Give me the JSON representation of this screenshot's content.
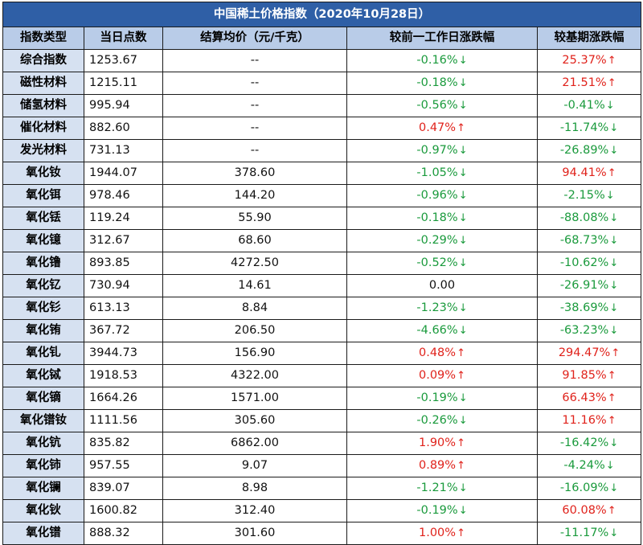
{
  "title": "中国稀土价格指数（2020年10月28日）",
  "headers": [
    "指数类型",
    "当日点数",
    "结算均价（元/千克）",
    "较前一工作日涨跌幅",
    "较基期涨跌幅"
  ],
  "colors": {
    "up": "#e0221b",
    "down": "#1a9a3c",
    "title_bg": "#2f5fa6",
    "header_bg": "#b9cce8",
    "name_bg": "#d6e1f1"
  },
  "icons": {
    "up": "arrow-up-icon",
    "down": "arrow-down-icon"
  },
  "rows": [
    {
      "name": "综合指数",
      "points": "1253.67",
      "price": "--",
      "daily": "-0.16%",
      "daily_dir": "down",
      "base": "25.37%",
      "base_dir": "up"
    },
    {
      "name": "磁性材料",
      "points": "1215.11",
      "price": "--",
      "daily": "-0.18%",
      "daily_dir": "down",
      "base": "21.51%",
      "base_dir": "up"
    },
    {
      "name": "储氢材料",
      "points": "995.94",
      "price": "--",
      "daily": "-0.56%",
      "daily_dir": "down",
      "base": "-0.41%",
      "base_dir": "down"
    },
    {
      "name": "催化材料",
      "points": "882.60",
      "price": "--",
      "daily": "0.47%",
      "daily_dir": "up",
      "base": "-11.74%",
      "base_dir": "down"
    },
    {
      "name": "发光材料",
      "points": "731.13",
      "price": "--",
      "daily": "-0.97%",
      "daily_dir": "down",
      "base": "-26.89%",
      "base_dir": "down"
    },
    {
      "name": "氧化钕",
      "points": "1944.07",
      "price": "378.60",
      "daily": "-1.05%",
      "daily_dir": "down",
      "base": "94.41%",
      "base_dir": "up"
    },
    {
      "name": "氧化铒",
      "points": "978.46",
      "price": "144.20",
      "daily": "-0.96%",
      "daily_dir": "down",
      "base": "-2.15%",
      "base_dir": "down"
    },
    {
      "name": "氧化铥",
      "points": "119.24",
      "price": "55.90",
      "daily": "-0.18%",
      "daily_dir": "down",
      "base": "-88.08%",
      "base_dir": "down"
    },
    {
      "name": "氧化镱",
      "points": "312.67",
      "price": "68.60",
      "daily": "-0.29%",
      "daily_dir": "down",
      "base": "-68.73%",
      "base_dir": "down"
    },
    {
      "name": "氧化镥",
      "points": "893.85",
      "price": "4272.50",
      "daily": "-0.52%",
      "daily_dir": "down",
      "base": "-10.62%",
      "base_dir": "down"
    },
    {
      "name": "氧化钇",
      "points": "730.94",
      "price": "14.61",
      "daily": "0.00",
      "daily_dir": "flat",
      "base": "-26.91%",
      "base_dir": "down"
    },
    {
      "name": "氧化钐",
      "points": "613.13",
      "price": "8.84",
      "daily": "-1.23%",
      "daily_dir": "down",
      "base": "-38.69%",
      "base_dir": "down"
    },
    {
      "name": "氧化铕",
      "points": "367.72",
      "price": "206.50",
      "daily": "-4.66%",
      "daily_dir": "down",
      "base": "-63.23%",
      "base_dir": "down"
    },
    {
      "name": "氧化钆",
      "points": "3944.73",
      "price": "156.90",
      "daily": "0.48%",
      "daily_dir": "up",
      "base": "294.47%",
      "base_dir": "up"
    },
    {
      "name": "氧化铽",
      "points": "1918.53",
      "price": "4322.00",
      "daily": "0.09%",
      "daily_dir": "up",
      "base": "91.85%",
      "base_dir": "up"
    },
    {
      "name": "氧化镝",
      "points": "1664.26",
      "price": "1571.00",
      "daily": "-0.19%",
      "daily_dir": "down",
      "base": "66.43%",
      "base_dir": "up"
    },
    {
      "name": "氧化镨钕",
      "points": "1111.56",
      "price": "305.60",
      "daily": "-0.26%",
      "daily_dir": "down",
      "base": "11.16%",
      "base_dir": "up"
    },
    {
      "name": "氧化钪",
      "points": "835.82",
      "price": "6862.00",
      "daily": "1.90%",
      "daily_dir": "up",
      "base": "-16.42%",
      "base_dir": "down"
    },
    {
      "name": "氧化铈",
      "points": "957.55",
      "price": "9.07",
      "daily": "0.89%",
      "daily_dir": "up",
      "base": "-4.24%",
      "base_dir": "down"
    },
    {
      "name": "氧化镧",
      "points": "839.07",
      "price": "8.98",
      "daily": "-1.21%",
      "daily_dir": "down",
      "base": "-16.09%",
      "base_dir": "down"
    },
    {
      "name": "氧化钬",
      "points": "1600.82",
      "price": "312.40",
      "daily": "-0.19%",
      "daily_dir": "down",
      "base": "60.08%",
      "base_dir": "up"
    },
    {
      "name": "氧化镨",
      "points": "888.32",
      "price": "301.60",
      "daily": "1.00%",
      "daily_dir": "up",
      "base": "-11.17%",
      "base_dir": "down"
    }
  ]
}
